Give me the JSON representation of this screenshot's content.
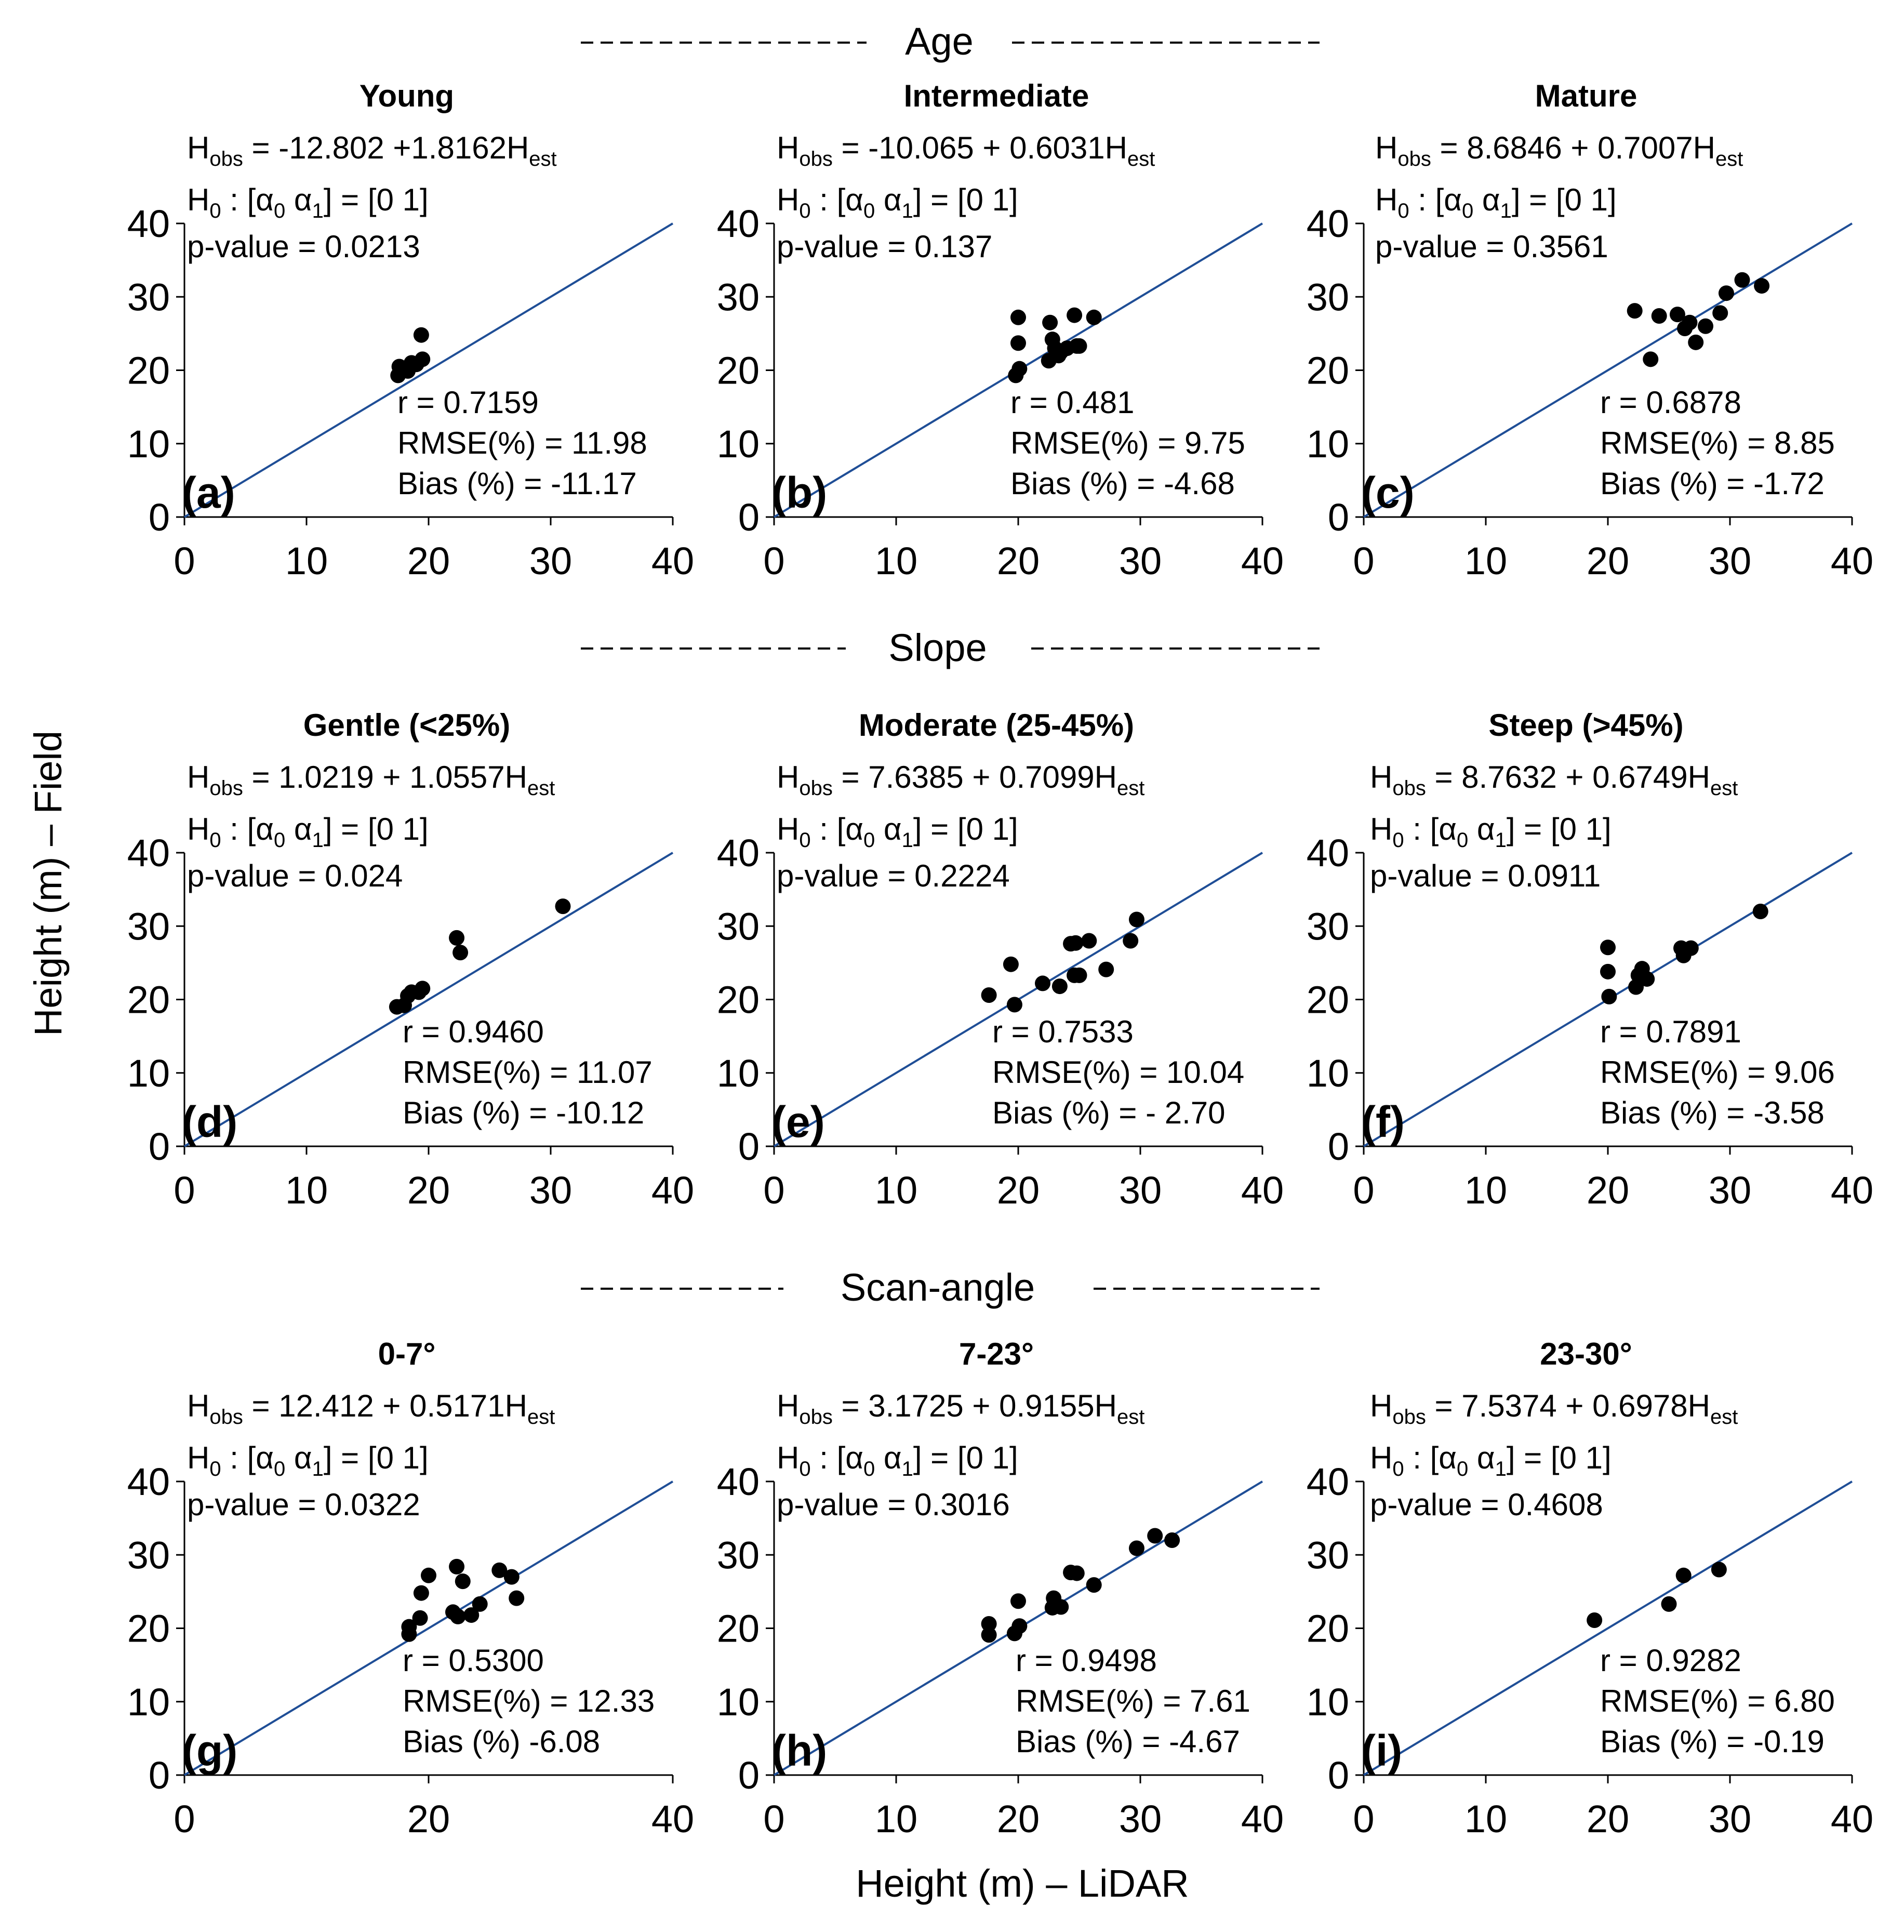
{
  "figure": {
    "xlabel": "Height (m) – LiDAR",
    "ylabel": "Height (m) – Field"
  },
  "sections": [
    "Age",
    "Slope",
    "Scan-angle"
  ],
  "colors": {
    "line": "#1f4e96",
    "point": "#000000"
  },
  "chart_data": [
    {
      "type": "scatter",
      "id": "a",
      "label": "(a)",
      "title": "Young",
      "eq": {
        "b0": "-12.802 +1.8162"
      },
      "h0_left": "H",
      "h0_sub": "0",
      "h0_open": "[",
      "a0": "α",
      "a0_sub": "0",
      "a1": "α",
      "a1_sub": "1",
      "h0_eq": "=",
      "h0_rhs_0": "0",
      "h0_rhs_1": "1",
      "pvalue": "p-value = 0.0213",
      "r": "r = 0.7159",
      "rmse": "RMSE(%) = 11.98",
      "bias": "Bias (%) = -11.17",
      "xlim": [
        0,
        40
      ],
      "ylim": [
        0,
        40
      ],
      "xticks": [
        "0",
        "10",
        "20",
        "30",
        "40"
      ],
      "yticks": [
        "0",
        "10",
        "20",
        "30",
        "40"
      ],
      "points": [
        [
          17.5,
          19.3
        ],
        [
          17.6,
          20.5
        ],
        [
          18.0,
          20.0
        ],
        [
          18.3,
          19.9
        ],
        [
          18.6,
          21.0
        ],
        [
          19.0,
          20.8
        ],
        [
          19.4,
          24.8
        ],
        [
          19.5,
          21.5
        ]
      ]
    },
    {
      "type": "scatter",
      "id": "b",
      "label": "(b)",
      "title": "Intermediate",
      "eq": {
        "b0": "-10.065 + 0.6031"
      },
      "h0_left": "H",
      "h0_sub": "0",
      "h0_open": "[",
      "a0": "α",
      "a0_sub": "0",
      "a1": "α",
      "a1_sub": "1",
      "h0_eq": "=",
      "h0_rhs_0": "0",
      "h0_rhs_1": "1",
      "pvalue": "p-value = 0.137",
      "r": "r = 0.481",
      "rmse": "RMSE(%) = 9.75",
      "bias": "Bias (%) = -4.68",
      "xlim": [
        0,
        40
      ],
      "ylim": [
        0,
        40
      ],
      "xticks": [
        "0",
        "10",
        "20",
        "30",
        "40"
      ],
      "yticks": [
        "0",
        "10",
        "20",
        "30",
        "40"
      ],
      "points": [
        [
          19.8,
          19.3
        ],
        [
          20.1,
          20.2
        ],
        [
          20.0,
          23.7
        ],
        [
          20.0,
          27.2
        ],
        [
          22.5,
          21.3
        ],
        [
          22.6,
          26.5
        ],
        [
          22.8,
          24.2
        ],
        [
          23.0,
          23.0
        ],
        [
          23.5,
          22.5
        ],
        [
          24.0,
          23.0
        ],
        [
          24.6,
          27.5
        ],
        [
          24.8,
          23.3
        ],
        [
          25.0,
          23.3
        ],
        [
          26.2,
          27.2
        ],
        [
          23.3,
          22.0
        ]
      ]
    },
    {
      "type": "scatter",
      "id": "c",
      "label": "(c)",
      "title": "Mature",
      "eq": {
        "b0": "8.6846 + 0.7007"
      },
      "h0_left": "H",
      "h0_sub": "0",
      "h0_open": "[",
      "a0": "α",
      "a0_sub": "0",
      "a1": "α",
      "a1_sub": "1",
      "h0_eq": "=",
      "h0_rhs_0": "0",
      "h0_rhs_1": "1",
      "pvalue": "p-value = 0.3561",
      "r": "r = 0.6878",
      "rmse": "RMSE(%) = 8.85",
      "bias": "Bias (%) = -1.72",
      "xlim": [
        0,
        40
      ],
      "ylim": [
        0,
        40
      ],
      "xticks": [
        "0",
        "10",
        "20",
        "30",
        "40"
      ],
      "yticks": [
        "0",
        "10",
        "20",
        "30",
        "40"
      ],
      "points": [
        [
          22.2,
          28.1
        ],
        [
          23.5,
          21.5
        ],
        [
          24.2,
          27.4
        ],
        [
          25.7,
          27.6
        ],
        [
          26.3,
          25.7
        ],
        [
          26.7,
          26.5
        ],
        [
          27.2,
          23.8
        ],
        [
          28.0,
          26.0
        ],
        [
          29.2,
          27.8
        ],
        [
          29.7,
          30.5
        ],
        [
          31.0,
          32.3
        ],
        [
          32.6,
          31.5
        ]
      ]
    },
    {
      "type": "scatter",
      "id": "d",
      "label": "(d)",
      "title": "Gentle (<25%)",
      "eq": {
        "b0": "1.0219 + 1.0557"
      },
      "h0_left": "H",
      "h0_sub": "0",
      "h0_open": "[",
      "a0": "α",
      "a0_sub": "0",
      "a1": "α",
      "a1_sub": "1",
      "h0_eq": "=",
      "h0_rhs_0": "0",
      "h0_rhs_1": "1",
      "pvalue": "p-value = 0.024",
      "r": "r = 0.9460",
      "rmse": "RMSE(%) = 11.07",
      "bias": "Bias (%) = -10.12",
      "xlim": [
        0,
        40
      ],
      "ylim": [
        0,
        40
      ],
      "xticks": [
        "0",
        "10",
        "20",
        "30",
        "40"
      ],
      "yticks": [
        "0",
        "10",
        "20",
        "30",
        "40"
      ],
      "points": [
        [
          17.4,
          19.0
        ],
        [
          18.0,
          19.2
        ],
        [
          18.3,
          20.5
        ],
        [
          18.6,
          21.0
        ],
        [
          19.2,
          21.0
        ],
        [
          19.5,
          21.5
        ],
        [
          22.3,
          28.4
        ],
        [
          22.6,
          26.4
        ],
        [
          31.0,
          32.7
        ]
      ]
    },
    {
      "type": "scatter",
      "id": "e",
      "label": "(e)",
      "title": "Moderate (25-45%)",
      "eq": {
        "b0": "7.6385 + 0.7099"
      },
      "h0_left": "H",
      "h0_sub": "0",
      "h0_open": "[",
      "a0": "α",
      "a0_sub": "0",
      "a1": "α",
      "a1_sub": "1",
      "h0_eq": "=",
      "h0_rhs_0": "0",
      "h0_rhs_1": "1",
      "pvalue": "p-value = 0.2224",
      "r": "r = 0.7533",
      "rmse": "RMSE(%) = 10.04",
      "bias": "Bias (%) = - 2.70",
      "xlim": [
        0,
        40
      ],
      "ylim": [
        0,
        40
      ],
      "xticks": [
        "0",
        "10",
        "20",
        "30",
        "40"
      ],
      "yticks": [
        "0",
        "10",
        "20",
        "30",
        "40"
      ],
      "points": [
        [
          17.6,
          20.6
        ],
        [
          19.4,
          24.8
        ],
        [
          19.7,
          19.3
        ],
        [
          22.0,
          22.2
        ],
        [
          23.4,
          21.8
        ],
        [
          24.3,
          27.6
        ],
        [
          24.6,
          23.3
        ],
        [
          24.7,
          27.7
        ],
        [
          25.0,
          23.3
        ],
        [
          25.8,
          28.0
        ],
        [
          27.2,
          24.1
        ],
        [
          29.2,
          28.0
        ],
        [
          29.7,
          30.9
        ]
      ]
    },
    {
      "type": "scatter",
      "id": "f",
      "label": "(f)",
      "title": "Steep (>45%)",
      "eq": {
        "b0": "8.7632 + 0.6749"
      },
      "h0_left": "H",
      "h0_sub": "0",
      "h0_open": "[",
      "a0": "α",
      "a0_sub": "0",
      "a1": "α",
      "a1_sub": "1",
      "h0_eq": "=",
      "h0_rhs_0": "0",
      "h0_rhs_1": "1",
      "pvalue": "p-value = 0.0911",
      "r": "r = 0.7891",
      "rmse": "RMSE(%) = 9.06",
      "bias": "Bias (%) = -3.58",
      "xlim": [
        0,
        40
      ],
      "ylim": [
        0,
        40
      ],
      "xticks": [
        "0",
        "10",
        "20",
        "30",
        "40"
      ],
      "yticks": [
        "0",
        "10",
        "20",
        "30",
        "40"
      ],
      "points": [
        [
          20.0,
          27.1
        ],
        [
          20.0,
          23.8
        ],
        [
          20.1,
          20.4
        ],
        [
          22.3,
          21.7
        ],
        [
          22.5,
          23.3
        ],
        [
          22.8,
          24.2
        ],
        [
          23.2,
          22.8
        ],
        [
          26.0,
          27.0
        ],
        [
          26.2,
          26.0
        ],
        [
          26.8,
          27.0
        ],
        [
          32.5,
          32.0
        ]
      ]
    },
    {
      "type": "scatter",
      "id": "g",
      "label": "(g)",
      "title": "0-7°",
      "eq": {
        "b0": "12.412 + 0.5171"
      },
      "h0_left": "H",
      "h0_sub": "0",
      "h0_open": "[",
      "a0": "α",
      "a0_sub": "0",
      "a1": "α",
      "a1_sub": "1",
      "h0_eq": "=",
      "h0_rhs_0": "0",
      "h0_rhs_1": "1",
      "pvalue": "p-value = 0.0322",
      "r": "r = 0.5300",
      "rmse": "RMSE(%) = 12.33",
      "bias": "Bias (%) -6.08",
      "xlim": [
        0,
        40
      ],
      "ylim": [
        0,
        40
      ],
      "xticks": [
        "0",
        "20",
        "40"
      ],
      "yticks": [
        "0",
        "10",
        "20",
        "30",
        "40"
      ],
      "points": [
        [
          18.4,
          19.2
        ],
        [
          18.4,
          20.2
        ],
        [
          19.3,
          21.4
        ],
        [
          19.4,
          24.8
        ],
        [
          20.0,
          27.2
        ],
        [
          22.0,
          22.2
        ],
        [
          22.3,
          28.4
        ],
        [
          22.4,
          21.6
        ],
        [
          22.8,
          26.4
        ],
        [
          23.5,
          21.8
        ],
        [
          24.2,
          23.3
        ],
        [
          25.8,
          27.9
        ],
        [
          26.8,
          27.0
        ],
        [
          27.2,
          24.1
        ]
      ]
    },
    {
      "type": "scatter",
      "id": "h",
      "label": "(h)",
      "title": "7-23°",
      "eq": {
        "b0": "3.1725 + 0.9155"
      },
      "h0_left": "H",
      "h0_sub": "0",
      "h0_open": "[",
      "a0": "α",
      "a0_sub": "0",
      "a1": "α",
      "a1_sub": "1",
      "h0_eq": "=",
      "h0_rhs_0": "0",
      "h0_rhs_1": "1",
      "pvalue": "p-value = 0.3016",
      "r": "r = 0.9498",
      "rmse": "RMSE(%) = 7.61",
      "bias": "Bias (%) = -4.67",
      "xlim": [
        0,
        40
      ],
      "ylim": [
        0,
        40
      ],
      "xticks": [
        "0",
        "10",
        "20",
        "30",
        "40"
      ],
      "yticks": [
        "0",
        "10",
        "20",
        "30",
        "40"
      ],
      "points": [
        [
          17.6,
          19.1
        ],
        [
          17.6,
          20.6
        ],
        [
          19.7,
          19.3
        ],
        [
          20.0,
          23.7
        ],
        [
          20.1,
          20.3
        ],
        [
          22.8,
          22.8
        ],
        [
          22.9,
          24.1
        ],
        [
          23.5,
          22.9
        ],
        [
          24.3,
          27.6
        ],
        [
          24.8,
          27.5
        ],
        [
          26.2,
          25.9
        ],
        [
          29.7,
          30.9
        ],
        [
          31.2,
          32.6
        ],
        [
          32.6,
          32.0
        ]
      ]
    },
    {
      "type": "scatter",
      "id": "i",
      "label": "(i)",
      "title": "23-30°",
      "eq": {
        "b0": "7.5374 + 0.6978"
      },
      "h0_left": "H",
      "h0_sub": "0",
      "h0_open": "[",
      "a0": "α",
      "a0_sub": "0",
      "a1": "α",
      "a1_sub": "1",
      "h0_eq": "=",
      "h0_rhs_0": "0",
      "h0_rhs_1": "1",
      "pvalue": "p-value = 0.4608",
      "r": "r = 0.9282",
      "rmse": "RMSE(%) = 6.80",
      "bias": "Bias (%) = -0.19",
      "xlim": [
        0,
        40
      ],
      "ylim": [
        0,
        40
      ],
      "xticks": [
        "0",
        "10",
        "20",
        "30",
        "40"
      ],
      "yticks": [
        "0",
        "10",
        "20",
        "30",
        "40"
      ],
      "points": [
        [
          18.9,
          21.1
        ],
        [
          25.0,
          23.3
        ],
        [
          26.2,
          27.2
        ],
        [
          29.1,
          28.0
        ]
      ]
    }
  ]
}
